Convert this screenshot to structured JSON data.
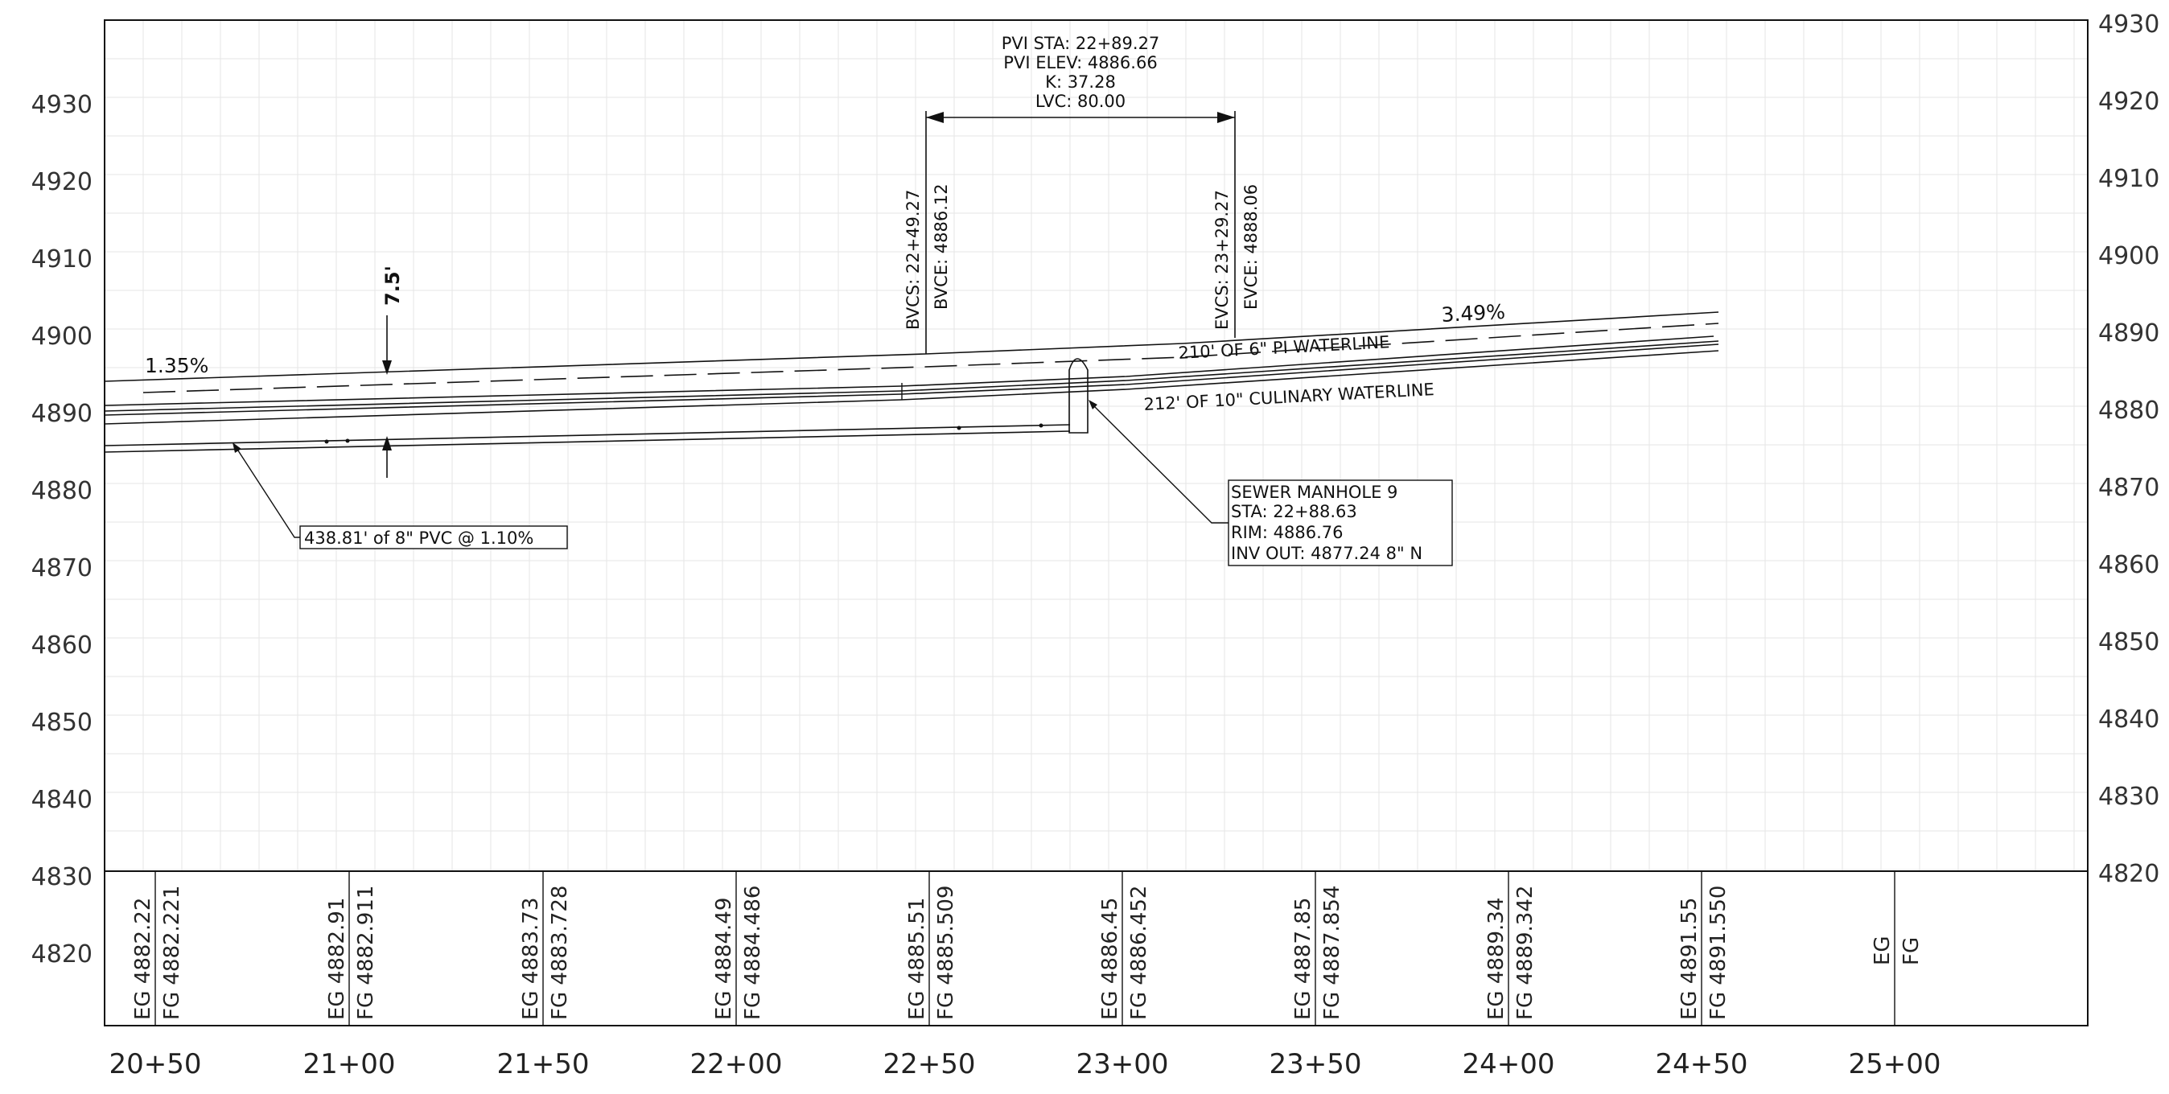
{
  "profile": {
    "left_elevations": [
      "4930",
      "4920",
      "4910",
      "4900",
      "4890",
      "4880",
      "4870",
      "4860",
      "4850",
      "4840",
      "4830",
      "4820"
    ],
    "right_elevations": [
      "4930",
      "4920",
      "4910",
      "4900",
      "4890",
      "4880",
      "4870",
      "4860",
      "4850",
      "4840",
      "4830",
      "4820"
    ],
    "stations": [
      "20+50",
      "21+00",
      "21+50",
      "22+00",
      "22+50",
      "23+00",
      "23+50",
      "24+00",
      "24+50",
      "25+00"
    ]
  },
  "vertical_curve": {
    "pvi_sta": "PVI STA:  22+89.27",
    "pvi_elev": "PVI ELEV:  4886.66",
    "k": "K:  37.28",
    "lvc": "LVC:  80.00",
    "bvcs": "BVCS:  22+49.27",
    "bvce": "BVCE:  4886.12",
    "evcs": "EVCS:  23+29.27",
    "evce": "EVCE:  4888.06"
  },
  "grades": {
    "left": "1.35%",
    "right": "3.49%"
  },
  "cover_depth": "7.5'",
  "waterlines": {
    "pi": "210' OF 6\"   PI WATERLINE",
    "culinary": "212' OF 10\"   CULINARY WATERLINE"
  },
  "sewer_pipe": "438.81' of 8\" PVC @ 1.10%",
  "manhole": {
    "name": "SEWER MANHOLE 9",
    "sta": "STA: 22+88.63",
    "rim": "RIM: 4886.76",
    "inv": "INV OUT: 4877.24  8\"  N"
  },
  "table": [
    {
      "eg": "EG  4882.22",
      "fg": "FG  4882.221"
    },
    {
      "eg": "EG  4882.91",
      "fg": "FG  4882.911"
    },
    {
      "eg": "EG  4883.73",
      "fg": "FG  4883.728"
    },
    {
      "eg": "EG  4884.49",
      "fg": "FG  4884.486"
    },
    {
      "eg": "EG  4885.51",
      "fg": "FG  4885.509"
    },
    {
      "eg": "EG  4886.45",
      "fg": "FG  4886.452"
    },
    {
      "eg": "EG  4887.85",
      "fg": "FG  4887.854"
    },
    {
      "eg": "EG  4889.34",
      "fg": "FG  4889.342"
    },
    {
      "eg": "EG  4891.55",
      "fg": "FG  4891.550"
    },
    {
      "eg": "EG",
      "fg": "FG"
    }
  ]
}
